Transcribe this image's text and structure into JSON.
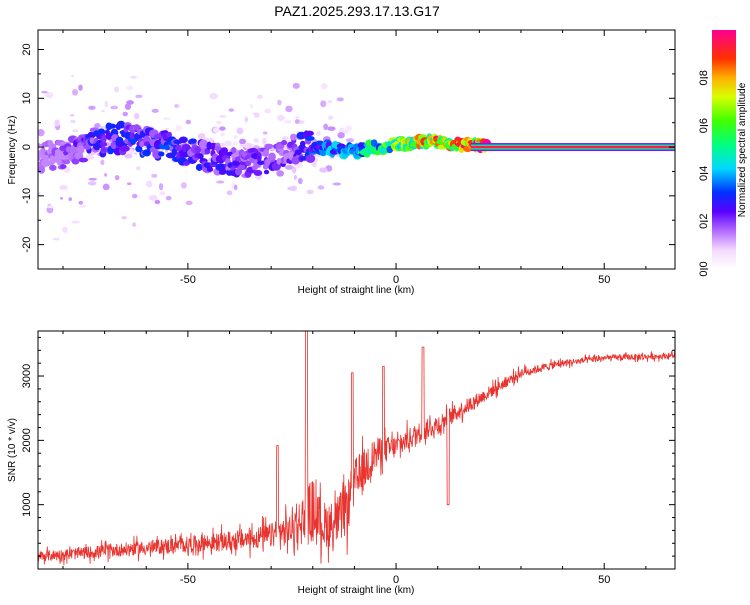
{
  "title": "PAZ1.2025.293.17.13.G17",
  "chart_data": [
    {
      "type": "heatmap",
      "xlabel": "Height of straight line (km)",
      "ylabel": "Frequency (Hz)",
      "xlim": [
        -86,
        67
      ],
      "ylim": [
        -25,
        24
      ],
      "xticks": [
        -50,
        0,
        50
      ],
      "xtick_labels": [
        "-50",
        "0",
        "50"
      ],
      "yticks": [
        -20,
        -10,
        0,
        10,
        20
      ],
      "ytick_labels": [
        "-20",
        "-10",
        "0",
        "10",
        "20"
      ],
      "colorbar": {
        "label": "Normalized spectral amplitude",
        "range": [
          0,
          1
        ],
        "ticks": [
          0.0,
          0.2,
          0.4,
          0.6,
          0.8
        ],
        "tick_labels": [
          "0.0",
          "0.2",
          "0.4",
          "0.6",
          "0.8"
        ]
      },
      "ridge": {
        "description_points_x": [
          -85,
          -80,
          -75,
          -70,
          -65,
          -60,
          -55,
          -50,
          -45,
          -40,
          -35,
          -30,
          -25,
          -22,
          -20,
          -15,
          -10,
          -5,
          0,
          5,
          10,
          15,
          20,
          25,
          30,
          40,
          50,
          60,
          67
        ],
        "frequency": [
          -2,
          -1.5,
          0,
          1.5,
          2,
          1,
          0,
          -1,
          -2,
          -3,
          -3.5,
          -2.5,
          -1,
          0.5,
          0,
          -0.5,
          -1,
          0,
          0.5,
          1,
          1,
          0.8,
          0.3,
          0,
          0,
          0,
          0,
          0,
          0
        ],
        "amplitude": [
          0.15,
          0.18,
          0.25,
          0.3,
          0.3,
          0.28,
          0.3,
          0.28,
          0.25,
          0.25,
          0.22,
          0.25,
          0.2,
          0.3,
          0.35,
          0.4,
          0.45,
          0.55,
          0.65,
          0.75,
          0.85,
          0.9,
          0.95,
          0.95,
          0.95,
          0.95,
          0.95,
          0.95,
          0.95
        ]
      }
    },
    {
      "type": "line",
      "xlabel": "Height of straight line (km)",
      "ylabel": "SNR (10 * v/v)",
      "xlim": [
        -86,
        67
      ],
      "ylim": [
        0,
        3700
      ],
      "xticks": [
        -50,
        0,
        50
      ],
      "xtick_labels": [
        "-50",
        "0",
        "50"
      ],
      "yticks": [
        1000,
        2000,
        3000
      ],
      "ytick_labels": [
        "1000",
        "2000",
        "3000"
      ],
      "color": "#e8332e",
      "series_envelope": {
        "x": [
          -86,
          -80,
          -70,
          -60,
          -50,
          -40,
          -30,
          -25,
          -22,
          -20,
          -18,
          -15,
          -12,
          -10,
          -5,
          0,
          5,
          10,
          15,
          20,
          25,
          30,
          40,
          50,
          60,
          67
        ],
        "mean": [
          200,
          220,
          280,
          330,
          380,
          430,
          520,
          620,
          800,
          900,
          700,
          700,
          900,
          1300,
          1800,
          1900,
          2100,
          2250,
          2450,
          2650,
          2850,
          3050,
          3200,
          3280,
          3300,
          3320
        ],
        "noise": [
          140,
          150,
          170,
          190,
          210,
          260,
          320,
          420,
          700,
          900,
          600,
          600,
          700,
          700,
          400,
          300,
          280,
          260,
          220,
          180,
          150,
          120,
          90,
          80,
          80,
          80
        ]
      },
      "spikes": [
        {
          "x": -28.5,
          "y": 1920
        },
        {
          "x": -21.5,
          "y": 3700
        },
        {
          "x": -10.5,
          "y": 3050
        },
        {
          "x": -3,
          "y": 3150
        },
        {
          "x": 6.5,
          "y": 3450
        },
        {
          "x": 12.5,
          "y": 1000
        }
      ]
    }
  ]
}
